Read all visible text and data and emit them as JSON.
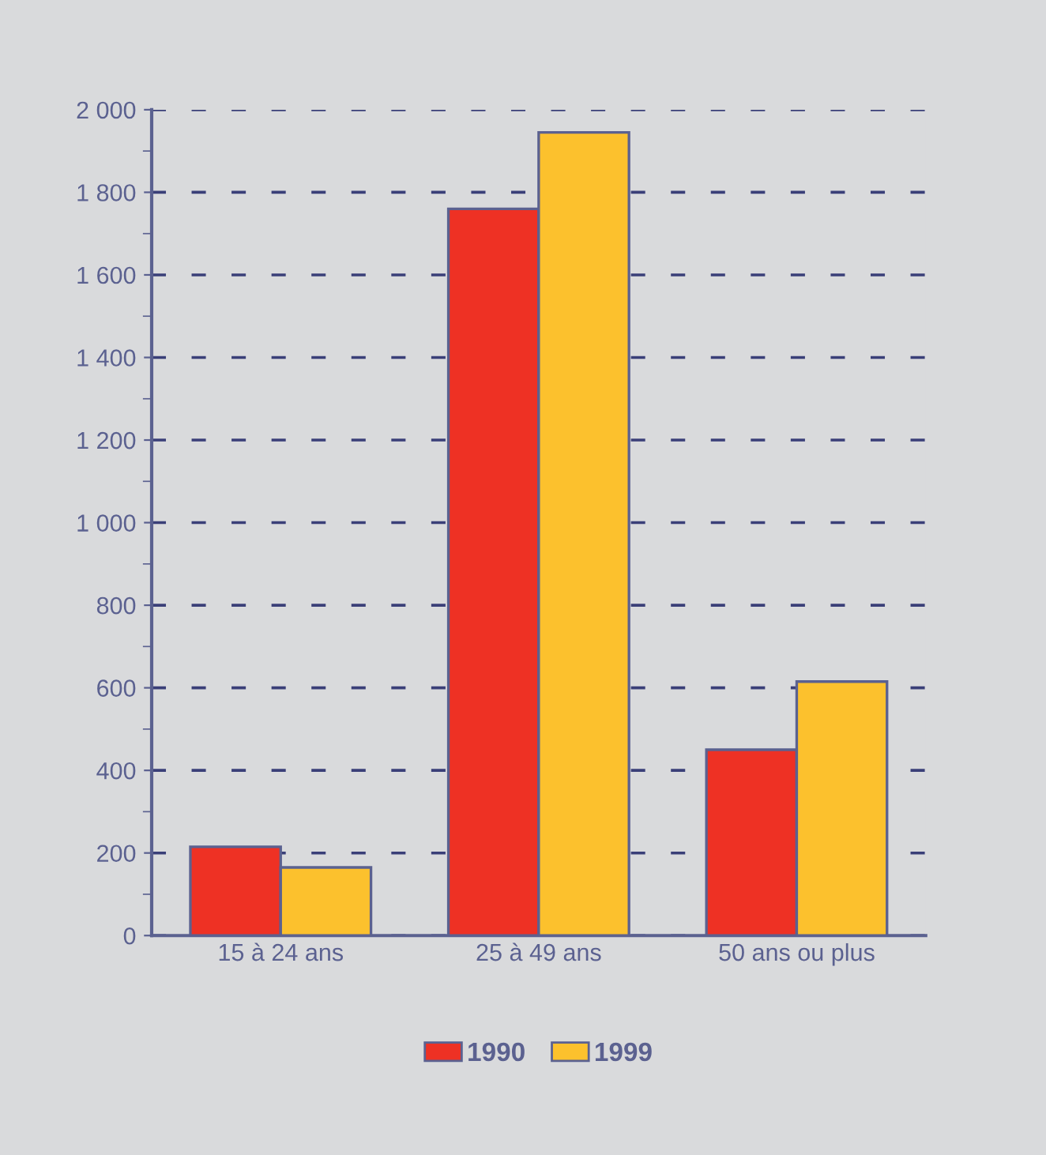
{
  "chart_data": {
    "type": "bar",
    "categories": [
      "15 à 24 ans",
      "25 à 49 ans",
      "50 ans ou plus"
    ],
    "series": [
      {
        "name": "1990",
        "color": "#ee3124",
        "values": [
          215,
          1760,
          450
        ]
      },
      {
        "name": "1999",
        "color": "#fcc12d",
        "values": [
          165,
          1945,
          615
        ]
      }
    ],
    "ylim": [
      0,
      2000
    ],
    "yticks": [
      0,
      200,
      400,
      600,
      800,
      {
        "value": 1000,
        "label": "1 000"
      },
      {
        "value": 1200,
        "label": "1 200"
      },
      {
        "value": 1400,
        "label": "1 400"
      },
      {
        "value": 1600,
        "label": "1 600"
      },
      {
        "value": 1800,
        "label": "1 800"
      },
      {
        "value": 2000,
        "label": "2 000"
      }
    ],
    "grid": "y",
    "legend": "bottom"
  }
}
